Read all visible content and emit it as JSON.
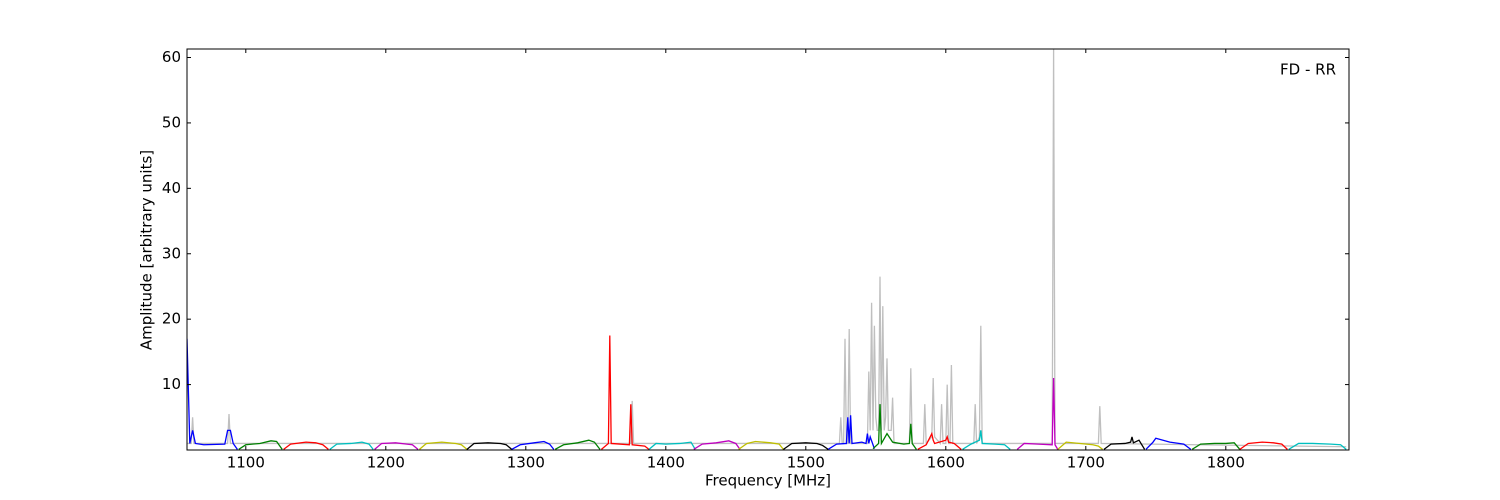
{
  "chart_data": {
    "type": "line",
    "annotation": "FD - RR",
    "x_label": "Frequency [MHz]",
    "y_label": "Amplitude [arbitrary units]",
    "xlim": [
      1058,
      1888
    ],
    "ylim": [
      0,
      61.3
    ],
    "xticks": [
      1100,
      1200,
      1300,
      1400,
      1500,
      1600,
      1700,
      1800
    ],
    "yticks": [
      10,
      20,
      30,
      40,
      50,
      60
    ],
    "series": [
      {
        "color": "#bfbfbf",
        "x": [
          1058,
          1061,
          1062,
          1063,
          1087,
          1088,
          1089,
          1375,
          1376,
          1377,
          1524,
          1525,
          1526,
          1527,
          1528,
          1529,
          1530,
          1531,
          1532,
          1544,
          1545,
          1546,
          1547,
          1548,
          1549,
          1550,
          1551,
          1552,
          1553,
          1554,
          1555,
          1556,
          1557,
          1558,
          1559,
          1561,
          1562,
          1563,
          1574,
          1575,
          1576,
          1584,
          1585,
          1586,
          1590,
          1591,
          1592,
          1596,
          1597,
          1598,
          1600,
          1601,
          1602,
          1603,
          1604,
          1605,
          1620,
          1621,
          1622,
          1624,
          1625,
          1626,
          1676,
          1677,
          1678,
          1709,
          1710,
          1711,
          1886
        ],
        "values": [
          1,
          1,
          5,
          1,
          1,
          5.5,
          1,
          1,
          7.5,
          1,
          1,
          5,
          1,
          1,
          17,
          1,
          1,
          18.5,
          1,
          1,
          12,
          3,
          22.5,
          3,
          19,
          5,
          3,
          3,
          26.5,
          3,
          22,
          3,
          5,
          14,
          3,
          3,
          8,
          1,
          1,
          12.5,
          1,
          1,
          7,
          1,
          2,
          11,
          2,
          1,
          7,
          1,
          1,
          10,
          1,
          1,
          13,
          1,
          1,
          7,
          1,
          2,
          19,
          1,
          1,
          61.3,
          1,
          1,
          6.7,
          1,
          0.5
        ]
      },
      {
        "color": "#0000ff",
        "x": [
          1058,
          1060,
          1062,
          1064,
          1070,
          1085,
          1087,
          1089,
          1091,
          1094
        ],
        "values": [
          17,
          1,
          3,
          1,
          0.8,
          0.9,
          3,
          3,
          1,
          0.1
        ]
      },
      {
        "color": "#008000",
        "x": [
          1095,
          1100,
          1110,
          1118,
          1122,
          1126
        ],
        "values": [
          0.1,
          0.8,
          1.0,
          1.4,
          1.3,
          0.1
        ]
      },
      {
        "color": "#ff0000",
        "x": [
          1127,
          1132,
          1143,
          1150,
          1155,
          1159
        ],
        "values": [
          0.1,
          0.9,
          1.2,
          1.1,
          0.8,
          0.1
        ]
      },
      {
        "color": "#00bfbf",
        "x": [
          1160,
          1165,
          1175,
          1183,
          1188,
          1191
        ],
        "values": [
          0.1,
          0.9,
          1.0,
          1.2,
          0.9,
          0.1
        ]
      },
      {
        "color": "#bf00bf",
        "x": [
          1192,
          1197,
          1207,
          1215,
          1219,
          1223
        ],
        "values": [
          0.1,
          1.0,
          1.1,
          0.9,
          0.8,
          0.1
        ]
      },
      {
        "color": "#bfbf00",
        "x": [
          1224,
          1229,
          1240,
          1250,
          1254,
          1258
        ],
        "values": [
          0.1,
          1.0,
          1.2,
          1.0,
          0.8,
          0.1
        ]
      },
      {
        "color": "#000000",
        "x": [
          1258,
          1263,
          1273,
          1282,
          1286,
          1290
        ],
        "values": [
          0.1,
          1.0,
          1.1,
          1.0,
          0.8,
          0.1
        ]
      },
      {
        "color": "#0000ff",
        "x": [
          1290,
          1296,
          1306,
          1313,
          1317,
          1320
        ],
        "values": [
          0.1,
          0.8,
          1.1,
          1.3,
          0.9,
          0.1
        ]
      },
      {
        "color": "#008000",
        "x": [
          1321,
          1327,
          1337,
          1345,
          1349,
          1353
        ],
        "values": [
          0.1,
          0.8,
          1.1,
          1.5,
          1.2,
          0.1
        ]
      },
      {
        "color": "#ff0000",
        "x": [
          1354,
          1359,
          1360,
          1361,
          1374,
          1375,
          1376,
          1385,
          1388
        ],
        "values": [
          0.1,
          1.0,
          17.5,
          1.0,
          0.8,
          7,
          0.8,
          0.6,
          0.1
        ]
      },
      {
        "color": "#00bfbf",
        "x": [
          1388,
          1393,
          1400,
          1410,
          1418,
          1421
        ],
        "values": [
          0.1,
          1.0,
          0.9,
          1.0,
          1.2,
          0.1
        ]
      },
      {
        "color": "#bf00bf",
        "x": [
          1420,
          1426,
          1436,
          1445,
          1450,
          1453
        ],
        "values": [
          0.1,
          0.9,
          1.1,
          1.4,
          1.0,
          0.1
        ]
      },
      {
        "color": "#bfbf00",
        "x": [
          1452,
          1458,
          1464,
          1475,
          1481,
          1484
        ],
        "values": [
          0.1,
          1.0,
          1.3,
          1.1,
          0.9,
          0.1
        ]
      },
      {
        "color": "#000000",
        "x": [
          1484,
          1490,
          1500,
          1508,
          1512,
          1516
        ],
        "values": [
          0.1,
          1.0,
          1.1,
          1.0,
          0.7,
          0.1
        ]
      },
      {
        "color": "#0000ff",
        "x": [
          1516,
          1522,
          1529,
          1530,
          1531,
          1532,
          1533,
          1540,
          1543,
          1544,
          1545,
          1546,
          1549
        ],
        "values": [
          0.1,
          0.9,
          1,
          5,
          1,
          5.3,
          1,
          1.2,
          1,
          2.5,
          1,
          2,
          0.2
        ]
      },
      {
        "color": "#008000",
        "x": [
          1548,
          1552,
          1553,
          1554,
          1558,
          1562,
          1570,
          1574,
          1575,
          1576,
          1579
        ],
        "values": [
          0.2,
          1,
          7,
          1,
          2.5,
          1.2,
          0.9,
          1,
          4,
          1,
          0.1
        ]
      },
      {
        "color": "#ff0000",
        "x": [
          1580,
          1586,
          1590,
          1591,
          1592,
          1600,
          1601,
          1602,
          1606,
          1611
        ],
        "values": [
          0.1,
          0.8,
          2.5,
          1.5,
          1,
          1.5,
          2,
          1.2,
          1,
          0.1
        ]
      },
      {
        "color": "#00bfbf",
        "x": [
          1612,
          1618,
          1624,
          1625,
          1626,
          1635,
          1642,
          1646
        ],
        "values": [
          0.1,
          0.9,
          1.5,
          3,
          1,
          0.9,
          0.8,
          0.1
        ]
      },
      {
        "color": "#bf00bf",
        "x": [
          1651,
          1656,
          1666,
          1676,
          1677,
          1678,
          1680
        ],
        "values": [
          0.1,
          1,
          0.9,
          0.8,
          11,
          0.8,
          0.1
        ]
      },
      {
        "color": "#bfbf00",
        "x": [
          1680,
          1686,
          1696,
          1705,
          1709,
          1712
        ],
        "values": [
          0.1,
          1.2,
          1.0,
          0.8,
          0.6,
          0.1
        ]
      },
      {
        "color": "#000000",
        "x": [
          1713,
          1718,
          1728,
          1732,
          1733,
          1734,
          1738,
          1742
        ],
        "values": [
          0.1,
          0.9,
          1.0,
          1.2,
          2,
          1.1,
          1.5,
          0.1
        ]
      },
      {
        "color": "#0000ff",
        "x": [
          1743,
          1748,
          1750,
          1760,
          1770,
          1775
        ],
        "values": [
          0.1,
          1.2,
          1.8,
          1.2,
          0.9,
          0.1
        ]
      },
      {
        "color": "#008000",
        "x": [
          1776,
          1782,
          1792,
          1800,
          1806,
          1810
        ],
        "values": [
          0.1,
          0.9,
          1.0,
          1.0,
          1.1,
          0.1
        ]
      },
      {
        "color": "#ff0000",
        "x": [
          1810,
          1816,
          1826,
          1834,
          1840,
          1844
        ],
        "values": [
          0.1,
          1.0,
          1.2,
          1.1,
          0.9,
          0.1
        ]
      },
      {
        "color": "#00bfbf",
        "x": [
          1845,
          1852,
          1862,
          1875,
          1882,
          1886
        ],
        "values": [
          0.1,
          1.0,
          1.0,
          0.9,
          0.8,
          0.1
        ]
      }
    ]
  }
}
